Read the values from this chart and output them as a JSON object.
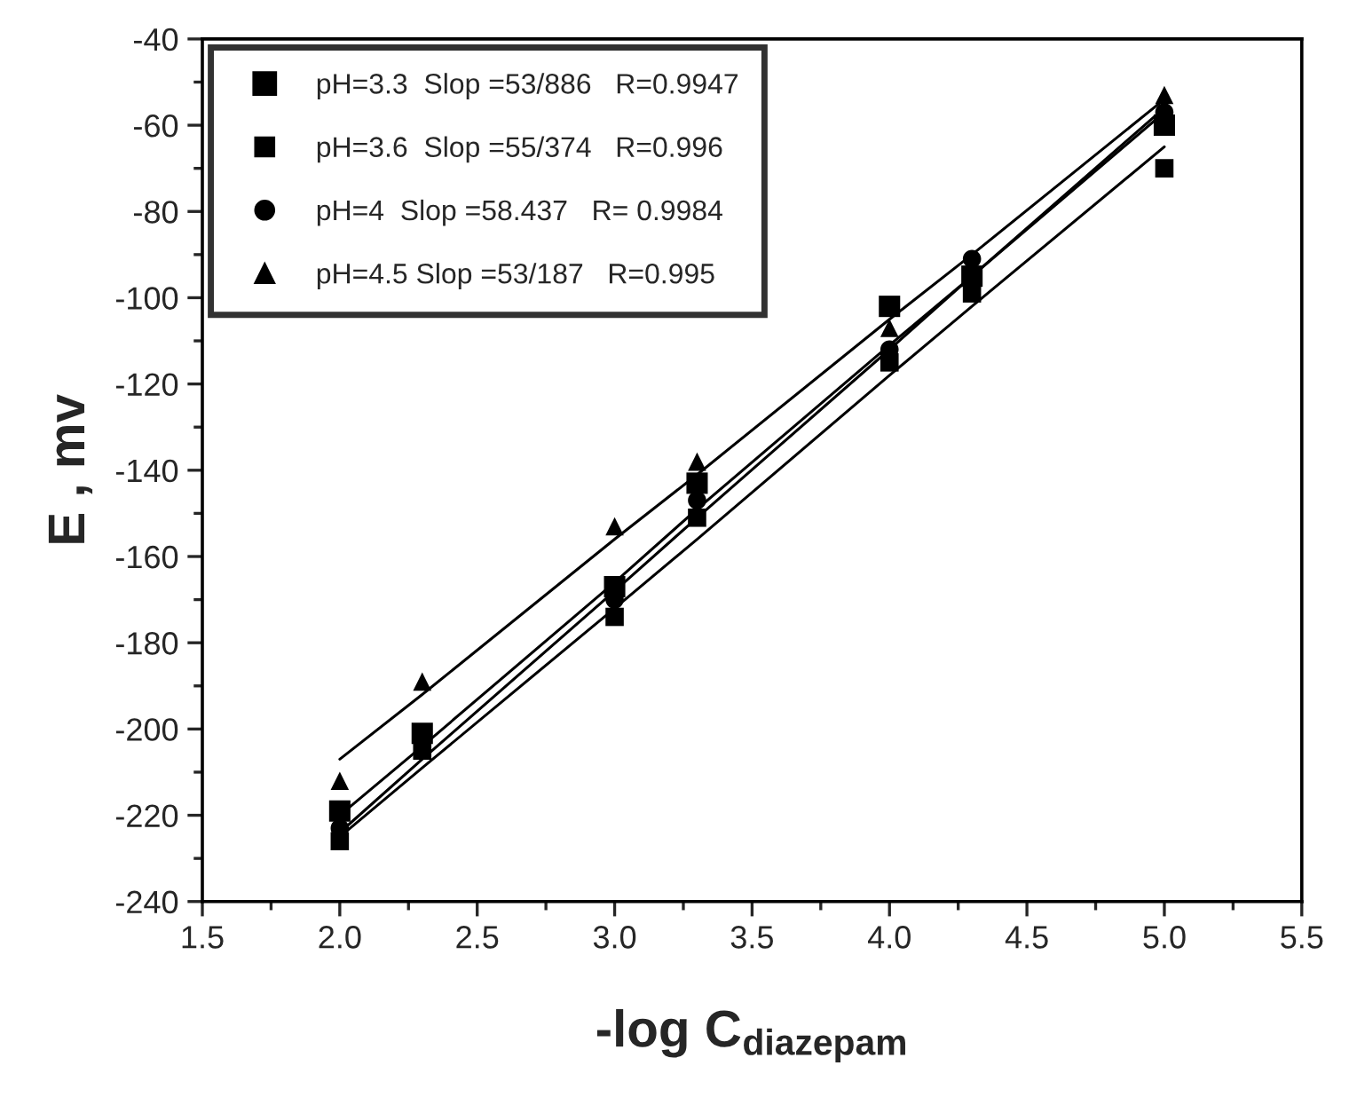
{
  "chart_data": {
    "type": "scatter",
    "xlabel": "-log C$_{diazepam}$",
    "ylabel": "E , mv",
    "x": [
      2,
      2.3,
      3,
      3.3,
      4,
      4.3,
      5
    ],
    "series": [
      {
        "name": "pH=3.3  Slop =53/886   R=0.9947",
        "color": "#000000",
        "marker": "square",
        "values": [
          -219,
          -201,
          -167,
          -143,
          -102,
          -95,
          -60
        ]
      },
      {
        "name": "pH=3.6  Slop =55/374   R=0.996",
        "color": "#000000",
        "marker": "square",
        "values": [
          -226,
          -205,
          -174,
          -151,
          -115,
          -99,
          -70
        ]
      },
      {
        "name": "pH=4  Slop =58.437   R= 0.9984",
        "color": "#000000",
        "marker": "circle",
        "values": [
          -223,
          null,
          -170,
          -147,
          -112,
          -91,
          -57
        ]
      },
      {
        "name": "pH=4.5 Slop =53/187   R=0.995",
        "color": "#000000",
        "marker": "triangle",
        "values": [
          -212,
          -189,
          -153,
          -138,
          -107,
          null,
          -53
        ]
      },
      {
        "type": "line",
        "color": "#000000",
        "marker": "none",
        "values": [
          -220,
          -204,
          -166,
          -149,
          -111,
          -95,
          -57
        ]
      },
      {
        "type": "line",
        "color": "#000000",
        "marker": "none",
        "values": [
          -225,
          -209,
          -172,
          -156,
          -118,
          -102,
          -65
        ]
      },
      {
        "type": "line",
        "color": "#000000",
        "marker": "none",
        "values": [
          -224,
          -207,
          -168,
          -151,
          -112,
          -95,
          -56
        ]
      },
      {
        "type": "line",
        "color": "#000000",
        "marker": "none",
        "values": [
          -207,
          -192,
          -156,
          -141,
          -105,
          -90,
          -54
        ]
      }
    ],
    "xlim": [
      1.5,
      5.5
    ],
    "ylim": [
      -240,
      -40
    ],
    "xticks": [
      {
        "value": 1.5,
        "label": "1.5"
      },
      {
        "value": 2,
        "label": "2.0"
      },
      {
        "value": 2.5,
        "label": "2.5"
      },
      {
        "value": 3,
        "label": "3.0"
      },
      {
        "value": 3.5,
        "label": "3.5"
      },
      {
        "value": 4,
        "label": "4.0"
      },
      {
        "value": 4.5,
        "label": "4.5"
      },
      {
        "value": 5,
        "label": "5.0"
      },
      {
        "value": 5.5,
        "label": "5.5"
      }
    ],
    "yticks": [
      -240,
      -220,
      -200,
      -180,
      -160,
      -140,
      -120,
      -100,
      -80,
      -60,
      -40
    ],
    "grid": false,
    "legend": "top left"
  }
}
